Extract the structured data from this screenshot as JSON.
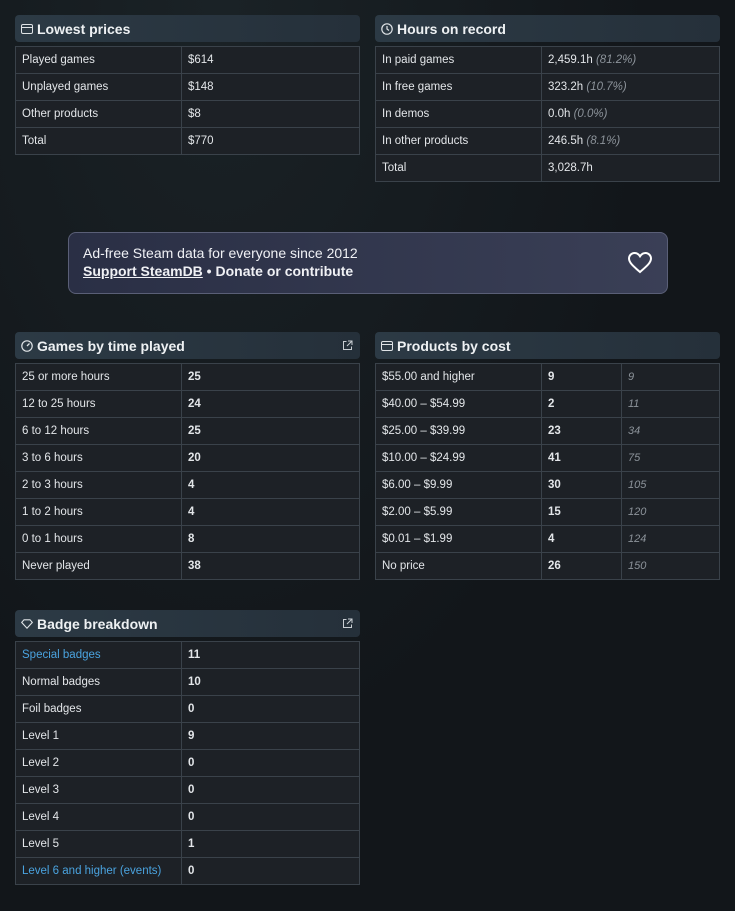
{
  "lowest_prices": {
    "title": "Lowest prices",
    "rows": [
      {
        "label": "Played games",
        "value": "$614"
      },
      {
        "label": "Unplayed games",
        "value": "$148"
      },
      {
        "label": "Other products",
        "value": "$8"
      },
      {
        "label": "Total",
        "value": "$770"
      }
    ]
  },
  "hours_on_record": {
    "title": "Hours on record",
    "rows": [
      {
        "label": "In paid games",
        "value": "2,459.1h",
        "pct": "(81.2%)"
      },
      {
        "label": "In free games",
        "value": "323.2h",
        "pct": "(10.7%)"
      },
      {
        "label": "In demos",
        "value": "0.0h",
        "pct": "(0.0%)"
      },
      {
        "label": "In other products",
        "value": "246.5h",
        "pct": "(8.1%)"
      },
      {
        "label": "Total",
        "value": "3,028.7h",
        "pct": ""
      }
    ]
  },
  "banner": {
    "line1": "Ad-free Steam data for everyone since 2012",
    "support": "Support SteamDB",
    "rest": " • Donate or contribute"
  },
  "games_by_time": {
    "title": "Games by time played",
    "rows": [
      {
        "label": "25 or more hours",
        "value": "25"
      },
      {
        "label": "12 to 25 hours",
        "value": "24"
      },
      {
        "label": "6 to 12 hours",
        "value": "25"
      },
      {
        "label": "3 to 6 hours",
        "value": "20"
      },
      {
        "label": "2 to 3 hours",
        "value": "4"
      },
      {
        "label": "1 to 2 hours",
        "value": "4"
      },
      {
        "label": "0 to 1 hours",
        "value": "8"
      },
      {
        "label": "Never played",
        "value": "38"
      }
    ]
  },
  "products_by_cost": {
    "title": "Products by cost",
    "rows": [
      {
        "label": "$55.00 and higher",
        "value": "9",
        "cum": "9"
      },
      {
        "label": "$40.00 – $54.99",
        "value": "2",
        "cum": "11"
      },
      {
        "label": "$25.00 – $39.99",
        "value": "23",
        "cum": "34"
      },
      {
        "label": "$10.00 – $24.99",
        "value": "41",
        "cum": "75"
      },
      {
        "label": "$6.00 – $9.99",
        "value": "30",
        "cum": "105"
      },
      {
        "label": "$2.00 – $5.99",
        "value": "15",
        "cum": "120"
      },
      {
        "label": "$0.01 – $1.99",
        "value": "4",
        "cum": "124"
      },
      {
        "label": "No price",
        "value": "26",
        "cum": "150"
      }
    ]
  },
  "badge_breakdown": {
    "title": "Badge breakdown",
    "rows": [
      {
        "label": "Special badges",
        "value": "11",
        "link": true
      },
      {
        "label": "Normal badges",
        "value": "10",
        "link": false
      },
      {
        "label": "Foil badges",
        "value": "0",
        "link": false
      },
      {
        "label": "Level 1",
        "value": "9",
        "link": false
      },
      {
        "label": "Level 2",
        "value": "0",
        "link": false
      },
      {
        "label": "Level 3",
        "value": "0",
        "link": false
      },
      {
        "label": "Level 4",
        "value": "0",
        "link": false
      },
      {
        "label": "Level 5",
        "value": "1",
        "link": false
      },
      {
        "label": "Level 6 and higher (events)",
        "value": "0",
        "link": true
      }
    ]
  },
  "icons": {
    "lowest_prices": "card-icon",
    "hours": "clock-icon",
    "games": "gauge-icon",
    "products": "card-icon",
    "badges": "diamond-icon",
    "external": "external-link-icon",
    "heart": "heart-icon"
  },
  "colors": {
    "link": "#4aa3df",
    "panel_head": "#2c3a45",
    "cell_bg": "#1d2126",
    "banner_border": "#5a5f77"
  }
}
